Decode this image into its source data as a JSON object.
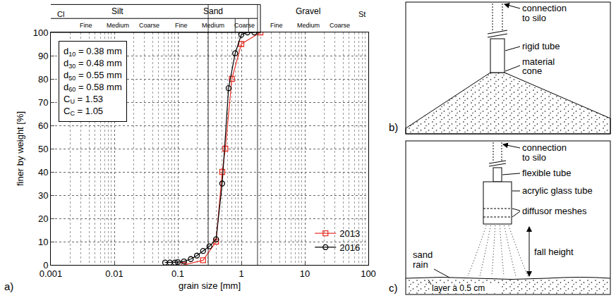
{
  "chart_data": {
    "type": "line",
    "panel": "a)",
    "x_label": "grain size [mm]",
    "y_label": "finer by weight [%]",
    "log": "x",
    "grid": true,
    "legend": "bottom right",
    "xlim": [
      0.001,
      100
    ],
    "xticks": [
      0.001,
      0.01,
      0.1,
      1,
      10,
      100
    ],
    "ylim": [
      0,
      100
    ],
    "yticks": [
      0,
      10,
      20,
      30,
      40,
      50,
      60,
      70,
      80,
      90,
      100
    ],
    "classes": [
      {
        "label": "Cl",
        "from": 0.001,
        "to": 0.002
      },
      {
        "label": "Silt",
        "from": 0.002,
        "to": 0.063,
        "sub": [
          {
            "label": "Fine",
            "from": 0.002,
            "to": 0.0063
          },
          {
            "label": "Medium",
            "from": 0.0063,
            "to": 0.02
          },
          {
            "label": "Coarse",
            "from": 0.02,
            "to": 0.063
          }
        ]
      },
      {
        "label": "Sand",
        "from": 0.063,
        "to": 2,
        "sub": [
          {
            "label": "Fine",
            "from": 0.063,
            "to": 0.2
          },
          {
            "label": "Medium",
            "from": 0.2,
            "to": 0.63
          },
          {
            "label": "Coarse",
            "from": 0.63,
            "to": 2
          }
        ]
      },
      {
        "label": "Gravel",
        "from": 2,
        "to": 63,
        "sub": [
          {
            "label": "Fine",
            "from": 2,
            "to": 6.3
          },
          {
            "label": "Medium",
            "from": 6.3,
            "to": 20
          },
          {
            "label": "Coarse",
            "from": 20,
            "to": 63
          }
        ]
      },
      {
        "label": "St",
        "from": 63,
        "to": 100
      }
    ],
    "stats": [
      {
        "name": "d",
        "sub": "10",
        "value": 0.38,
        "unit": "mm"
      },
      {
        "name": "d",
        "sub": "30",
        "value": 0.48,
        "unit": "mm"
      },
      {
        "name": "d",
        "sub": "50",
        "value": 0.55,
        "unit": "mm"
      },
      {
        "name": "d",
        "sub": "60",
        "value": 0.58,
        "unit": "mm"
      },
      {
        "name": "C",
        "sub": "U",
        "value": 1.53
      },
      {
        "name": "C",
        "sub": "C",
        "value": 1.05
      }
    ],
    "series": [
      {
        "name": "2013",
        "color": "#e8352b",
        "marker": "square-open",
        "line_style": "solid",
        "x": [
          0.125,
          0.25,
          0.4,
          0.5,
          0.56,
          0.71,
          1.0,
          2.0
        ],
        "values": [
          0,
          2,
          10,
          40,
          50,
          80,
          95,
          100
        ]
      },
      {
        "name": "2016",
        "color": "#000000",
        "marker": "circle-open",
        "line_style": "solid",
        "x": [
          0.063,
          0.075,
          0.09,
          0.1,
          0.125,
          0.16,
          0.2,
          0.25,
          0.315,
          0.4,
          0.5,
          0.63,
          0.8,
          1.0,
          1.25,
          1.6
        ],
        "values": [
          1,
          1,
          1,
          1.2,
          1.5,
          2.5,
          4,
          6,
          8,
          11,
          35,
          76,
          91,
          99,
          100,
          100
        ]
      }
    ]
  },
  "diagrams": {
    "b": {
      "letter": "b)",
      "connection": [
        "connection",
        "to silo"
      ],
      "tube": "rigid tube",
      "cone": [
        "material",
        "cone"
      ]
    },
    "c": {
      "letter": "c)",
      "connection": [
        "connection",
        "to silo"
      ],
      "flexible_tube": "flexible tube",
      "glass_tube": "acrylic glass tube",
      "meshes": "diffusor meshes",
      "sand_rain": [
        "sand",
        "rain"
      ],
      "fall_height": "fall height",
      "layer": "layer à 0.5 cm"
    }
  }
}
